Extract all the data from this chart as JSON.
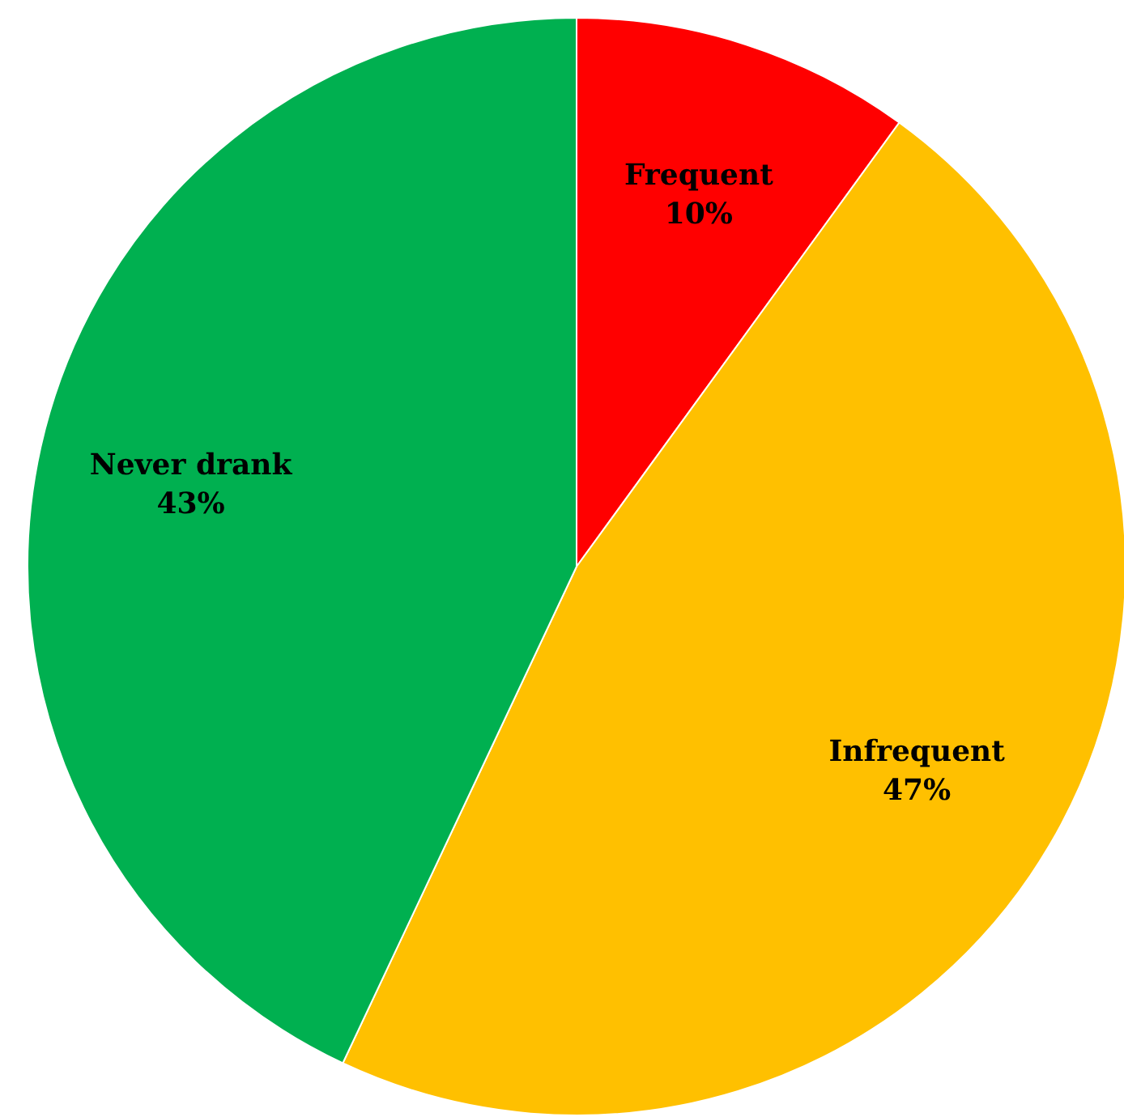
{
  "chart_data": {
    "type": "pie",
    "categories": [
      "Frequent",
      "Infrequent",
      "Never drank"
    ],
    "values": [
      10,
      47,
      43
    ],
    "colors": [
      "#ff0000",
      "#ffc000",
      "#00b050"
    ],
    "value_labels": [
      "10%",
      "47%",
      "43%"
    ]
  }
}
